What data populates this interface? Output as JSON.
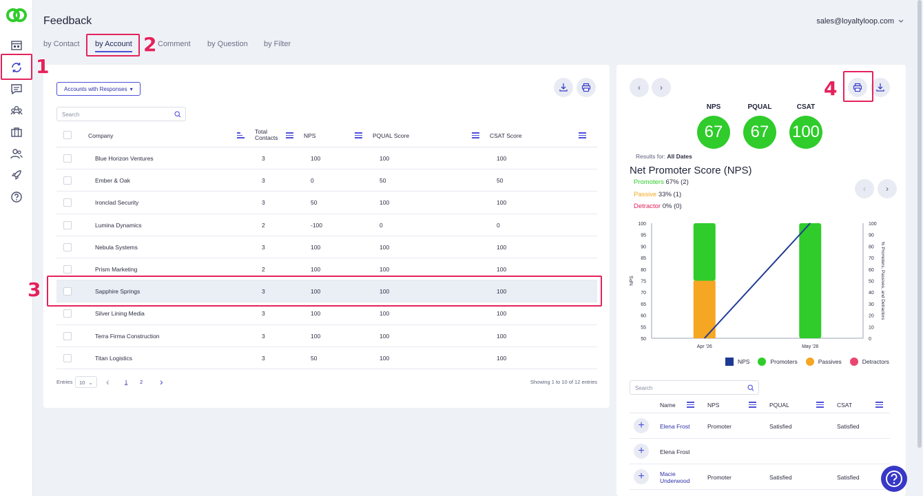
{
  "header": {
    "title": "Feedback",
    "account_email": "sales@loyaltyloop.com"
  },
  "tabs": [
    {
      "label": "by Contact"
    },
    {
      "label": "by Account"
    },
    {
      "label": "Comment"
    },
    {
      "label": "by Question"
    },
    {
      "label": "by Filter"
    }
  ],
  "annotations": [
    "1",
    "2",
    "3",
    "4"
  ],
  "accounts": {
    "filter_label": "Accounts with Responses",
    "search_placeholder": "Search",
    "columns": {
      "company": "Company",
      "total_contacts_1": "Total",
      "total_contacts_2": "Contacts",
      "nps": "NPS",
      "pqual": "PQUAL Score",
      "csat": "CSAT Score"
    },
    "rows": [
      {
        "company": "Blue Horizon Ventures",
        "contacts": "3",
        "nps": "100",
        "pqual": "100",
        "csat": "100"
      },
      {
        "company": "Ember & Oak",
        "contacts": "3",
        "nps": "0",
        "pqual": "50",
        "csat": "50"
      },
      {
        "company": "Ironclad Security",
        "contacts": "3",
        "nps": "50",
        "pqual": "100",
        "csat": "100"
      },
      {
        "company": "Lumina Dynamics",
        "contacts": "2",
        "nps": "-100",
        "pqual": "0",
        "csat": "0"
      },
      {
        "company": "Nebula Systems",
        "contacts": "3",
        "nps": "100",
        "pqual": "100",
        "csat": "100"
      },
      {
        "company": "Prism Marketing",
        "contacts": "2",
        "nps": "100",
        "pqual": "100",
        "csat": "100"
      },
      {
        "company": "Sapphire Springs",
        "contacts": "3",
        "nps": "100",
        "pqual": "100",
        "csat": "100"
      },
      {
        "company": "Silver Lining Media",
        "contacts": "3",
        "nps": "100",
        "pqual": "100",
        "csat": "100"
      },
      {
        "company": "Terra Firma Construction",
        "contacts": "3",
        "nps": "100",
        "pqual": "100",
        "csat": "100"
      },
      {
        "company": "Titan Logistics",
        "contacts": "3",
        "nps": "50",
        "pqual": "100",
        "csat": "100"
      }
    ],
    "pager": {
      "entries_label": "Entries",
      "page_size": "10",
      "pages": [
        "1",
        "2"
      ],
      "info": "Showing 1 to 10 of 12 entries"
    }
  },
  "detail": {
    "scores": [
      {
        "label": "NPS",
        "value": "67"
      },
      {
        "label": "PQUAL",
        "value": "67"
      },
      {
        "label": "CSAT",
        "value": "100"
      }
    ],
    "results_for_label": "Results for:",
    "results_for_value": "All Dates",
    "nps_title": "Net Promoter Score (NPS)",
    "breakdown": [
      {
        "name": "Promoters",
        "value": "67% (2)",
        "color": "#2fcc2b"
      },
      {
        "name": "Passive",
        "value": "33% (1)",
        "color": "#f5a623"
      },
      {
        "name": "Detractor",
        "value": "0% (0)",
        "color": "#e3225b"
      }
    ],
    "contacts": {
      "search_placeholder": "Search",
      "columns": {
        "name": "Name",
        "nps": "NPS",
        "pqual": "PQUAL",
        "csat": "CSAT"
      },
      "rows": [
        {
          "name": "Elena Frost",
          "nps": "Promoter",
          "pqual": "Satisfied",
          "csat": "Satisfied",
          "link": true
        },
        {
          "name": "Elena Frost",
          "nps": "",
          "pqual": "",
          "csat": "",
          "link": false
        },
        {
          "name": "Macie Underwood",
          "nps": "Promoter",
          "pqual": "Satisfied",
          "csat": "Satisfied",
          "link": true
        }
      ]
    }
  },
  "chart_data": {
    "type": "bar",
    "categories": [
      "Apr '26",
      "May '26"
    ],
    "ylabel": "NPS",
    "y2label": "% Promoters, Passives, and Detractors",
    "ylim": [
      50,
      100
    ],
    "y2lim": [
      0,
      100
    ],
    "y_ticks": [
      "100",
      "95",
      "90",
      "85",
      "80",
      "75",
      "70",
      "65",
      "60",
      "55",
      "50"
    ],
    "y2_ticks": [
      "100",
      "90",
      "80",
      "70",
      "60",
      "50",
      "40",
      "30",
      "20",
      "10",
      "0"
    ],
    "series": [
      {
        "name": "NPS",
        "type": "line",
        "values": [
          50,
          100
        ],
        "color": "#1f3a93"
      },
      {
        "name": "Promoters",
        "type": "bar",
        "values": [
          50,
          100
        ],
        "color": "#2fcc2b"
      },
      {
        "name": "Passives",
        "type": "bar",
        "values": [
          50,
          0
        ],
        "color": "#f5a623"
      },
      {
        "name": "Detractors",
        "type": "bar",
        "values": [
          0,
          0
        ],
        "color": "#e3225b"
      }
    ],
    "legend": "bottom"
  },
  "colors": {
    "accent": "#4b4fd8",
    "annotation": "#e3225b",
    "score_green": "#2fcc2b"
  }
}
